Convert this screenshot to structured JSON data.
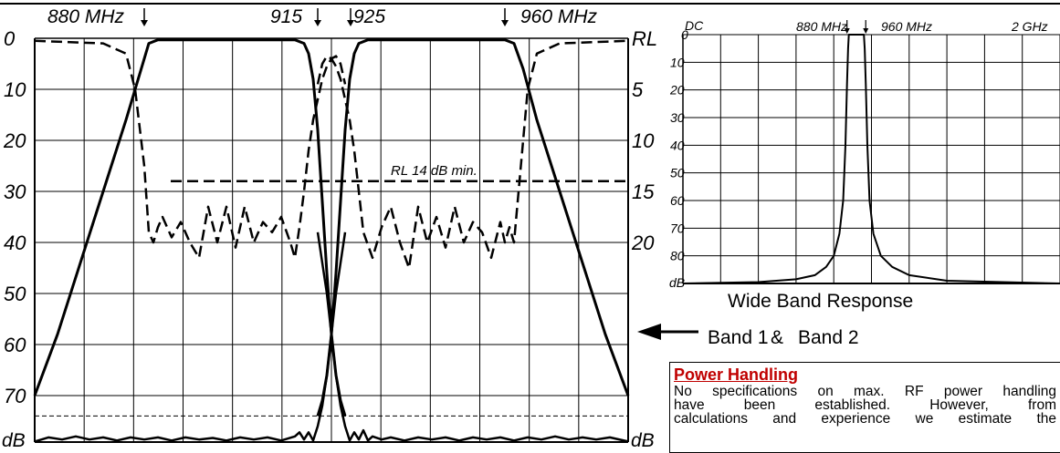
{
  "chart_data": [
    {
      "type": "line",
      "top_labels": [
        "880 MHz",
        "915",
        "925",
        "960 MHz"
      ],
      "x": {
        "range_mhz": [
          855,
          985
        ],
        "markers_mhz": [
          880,
          915,
          925,
          960
        ]
      },
      "y_left": {
        "range_db": [
          0,
          80
        ],
        "ticks": [
          "0",
          "10",
          "20",
          "30",
          "40",
          "50",
          "60",
          "70"
        ],
        "unit_label": "dB"
      },
      "y_right": {
        "title": "RL",
        "ticks": [
          "5",
          "10",
          "15",
          "20"
        ],
        "unit_label": "dB"
      },
      "grid": true,
      "annotation": "RL 14 dB min.",
      "annotation_level_db": 28,
      "reference_level_db": 74,
      "series": [
        {
          "style": "solid",
          "x": [
            855,
            860,
            865,
            870,
            875,
            879,
            880,
            882,
            884,
            900,
            912,
            914,
            915,
            916,
            917,
            918,
            919,
            920,
            921,
            922,
            923
          ],
          "y": [
            70,
            58,
            44,
            30,
            16,
            4,
            1,
            0.3,
            0.3,
            0.3,
            0.3,
            1,
            3,
            8,
            18,
            32,
            46,
            58,
            66,
            71,
            74
          ]
        },
        {
          "style": "solid",
          "x": [
            917,
            918,
            919,
            920,
            921,
            922,
            923,
            924,
            925,
            926,
            928,
            945,
            958,
            960,
            962,
            965,
            970,
            975,
            980,
            985
          ],
          "y": [
            74,
            71,
            66,
            58,
            46,
            32,
            18,
            8,
            3,
            1,
            0.3,
            0.3,
            0.3,
            1,
            6,
            16,
            30,
            44,
            58,
            70
          ]
        },
        {
          "style": "dashed",
          "x": [
            855,
            870,
            875,
            877,
            879,
            880,
            881,
            882,
            883,
            885,
            887,
            889,
            891,
            893,
            895,
            897,
            899,
            901,
            903,
            905,
            907,
            909,
            911,
            912,
            913,
            914,
            915,
            916,
            917,
            918,
            919,
            920,
            921,
            922,
            923
          ],
          "y": [
            0.5,
            1,
            3,
            10,
            25,
            38,
            40,
            37,
            35,
            39,
            36,
            40,
            43,
            33,
            40,
            33,
            41,
            33,
            40,
            36,
            38,
            35,
            40,
            43,
            37,
            30,
            22,
            16,
            12,
            8,
            5.5,
            4,
            3.5,
            5,
            9
          ]
        },
        {
          "style": "dashed",
          "x": [
            917,
            918,
            919,
            920,
            921,
            922,
            923,
            924,
            925,
            926,
            927,
            929,
            931,
            933,
            935,
            937,
            939,
            941,
            943,
            945,
            947,
            949,
            951,
            953,
            955,
            957,
            958,
            959,
            960,
            961,
            963,
            965,
            970,
            985
          ],
          "y": [
            9,
            5,
            3.5,
            4,
            5.5,
            8,
            12,
            16,
            22,
            30,
            38,
            43,
            37,
            33,
            40,
            45,
            33,
            40,
            35,
            41,
            33,
            40,
            36,
            38,
            43,
            36,
            40,
            37,
            40,
            30,
            10,
            3,
            1,
            0.5
          ]
        },
        {
          "style": "solid-thin",
          "x": [
            855,
            858,
            861,
            864,
            867,
            870,
            873,
            876,
            879,
            882,
            885,
            888,
            891,
            894,
            897,
            900,
            903,
            906,
            909,
            912,
            913,
            914,
            915,
            916,
            917,
            918,
            919,
            920,
            921,
            922,
            923
          ],
          "y": [
            79,
            78.2,
            78.6,
            78,
            78.6,
            78.2,
            78.8,
            78.2,
            78.6,
            78.2,
            78.8,
            78.2,
            78.6,
            78.3,
            78.8,
            78.2,
            78.6,
            78.2,
            78.8,
            78,
            77.2,
            78.6,
            77.2,
            78.8,
            76,
            72,
            66,
            58,
            50,
            44,
            38
          ]
        },
        {
          "style": "solid-thin",
          "x": [
            917,
            918,
            919,
            920,
            921,
            922,
            923,
            924,
            925,
            926,
            927,
            928,
            929,
            931,
            933,
            936,
            939,
            942,
            945,
            948,
            951,
            954,
            957,
            960,
            963,
            966,
            969,
            972,
            975,
            978,
            981,
            985
          ],
          "y": [
            38,
            44,
            50,
            58,
            66,
            72,
            76,
            78.8,
            77.2,
            78.6,
            76.8,
            78.8,
            78,
            78.6,
            78.2,
            78.8,
            78.2,
            78.6,
            78.2,
            78.8,
            78.2,
            78.6,
            78.2,
            78.8,
            78.2,
            78.6,
            78,
            78.6,
            78.2,
            78.6,
            78.2,
            79
          ]
        }
      ]
    },
    {
      "type": "line",
      "top_labels": [
        "DC",
        "880 MHz",
        "960 MHz",
        "2 GHz"
      ],
      "x": {
        "range_mhz": [
          0,
          2000
        ]
      },
      "y": {
        "range_db": [
          0,
          90
        ],
        "ticks": [
          "0",
          "10",
          "20",
          "30",
          "40",
          "50",
          "60",
          "70",
          "80"
        ],
        "unit_label": "dB"
      },
      "grid": true,
      "caption": "Wide Band Response",
      "series": [
        {
          "x": [
            0,
            400,
            600,
            700,
            760,
            800,
            830,
            850,
            862,
            870,
            876,
            880,
            920,
            960,
            964,
            970,
            978,
            990,
            1010,
            1050,
            1110,
            1200,
            1400,
            2000
          ],
          "y": [
            90,
            89.5,
            88.5,
            87,
            84,
            80,
            72,
            60,
            40,
            18,
            5,
            0,
            0,
            0,
            5,
            18,
            40,
            60,
            72,
            80,
            84,
            87,
            89,
            90
          ]
        }
      ]
    }
  ],
  "band_label": {
    "band1": "Band 1",
    "amp": "&",
    "band2": "Band 2"
  },
  "power_handling": {
    "title": "Power Handling",
    "lines": [
      "No specifications on max. RF power handling",
      "have been established. However, from",
      "calculations and experience we estimate the"
    ]
  }
}
